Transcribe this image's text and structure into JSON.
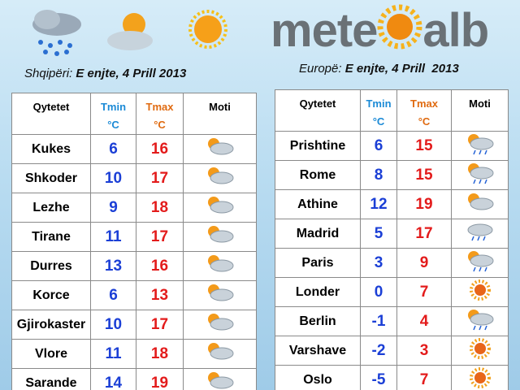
{
  "logo": {
    "left": "mete",
    "right": "alb"
  },
  "albania": {
    "label": "Shqipëri:",
    "date": "E enjte, 4 Prill 2013",
    "columns": [
      "Qytetet",
      "Tmin",
      "Tmax",
      "Moti"
    ],
    "unit": "°C",
    "rows": [
      [
        "Kukes",
        6,
        16
      ],
      [
        "Shkoder",
        10,
        17
      ],
      [
        "Lezhe",
        9,
        18
      ],
      [
        "Tirane",
        11,
        17
      ],
      [
        "Durres",
        13,
        16
      ],
      [
        "Korce",
        6,
        13
      ],
      [
        "Gjirokaster",
        10,
        17
      ],
      [
        "Vlore",
        11,
        18
      ],
      [
        "Sarande",
        14,
        19
      ]
    ]
  },
  "europe": {
    "label": "Europë:",
    "date": "E enjte, 4 Prill  2013",
    "columns": [
      "Qytetet",
      "Tmin",
      "Tmax",
      "Moti"
    ],
    "unit": "°C",
    "rows": [
      [
        "Prishtine",
        6,
        15
      ],
      [
        "Rome",
        8,
        15
      ],
      [
        "Athine",
        12,
        19
      ],
      [
        "Madrid",
        5,
        17
      ],
      [
        "Paris",
        3,
        9
      ],
      [
        "Londer",
        0,
        7
      ],
      [
        "Berlin",
        -1,
        4
      ],
      [
        "Varshave",
        -2,
        3
      ],
      [
        "Oslo",
        -5,
        7
      ]
    ]
  }
}
